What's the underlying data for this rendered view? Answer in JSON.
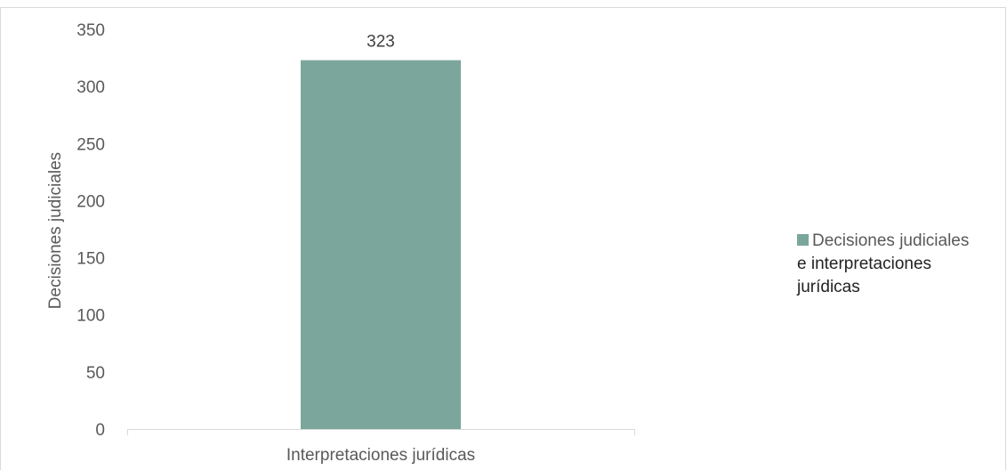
{
  "chart_data": {
    "type": "bar",
    "categories": [
      "Interpretaciones jurídicas"
    ],
    "series": [
      {
        "name": "Decisiones judiciales e interpretaciones jurídicas",
        "values": [
          323
        ],
        "color": "#7ba69b"
      }
    ],
    "data_labels": [
      "323"
    ],
    "ylabel": "Decisiones judiciales",
    "xlabel": "",
    "title": "",
    "ylim": [
      0,
      350
    ],
    "yticks": [
      0,
      50,
      100,
      150,
      200,
      250,
      300,
      350
    ],
    "grid": false,
    "legend_placement": "right",
    "legend_lines": [
      "Decisiones judiciales",
      "e interpretaciones",
      "jurídicas"
    ]
  }
}
